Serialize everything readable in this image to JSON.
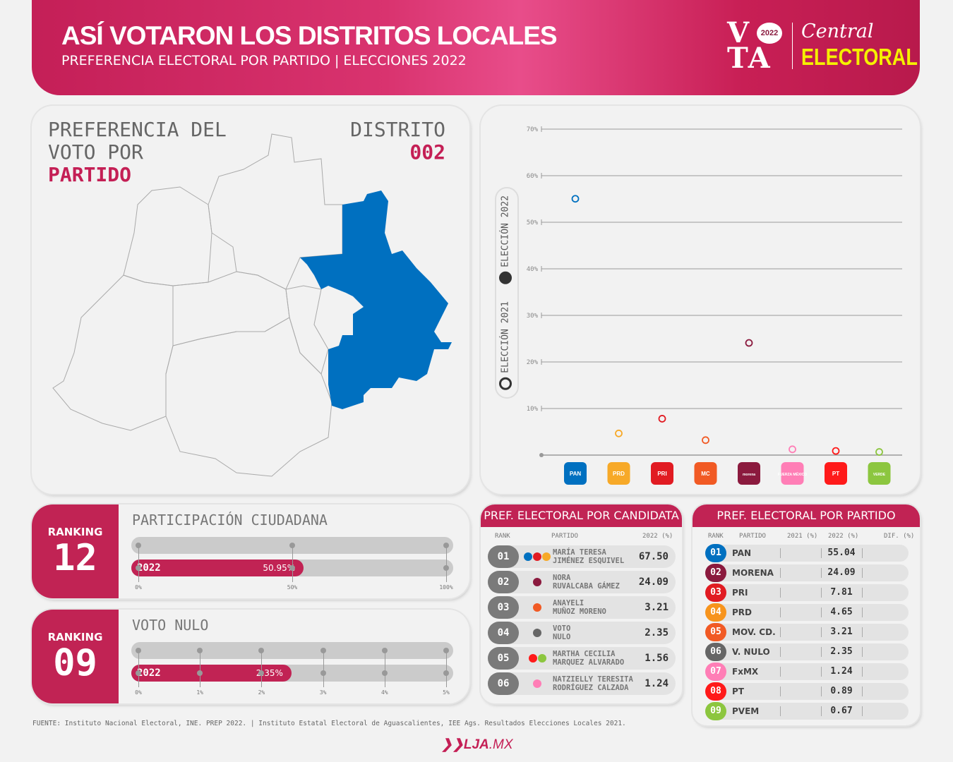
{
  "header": {
    "title": "ASÍ VOTARON LOS DISTRITOS LOCALES",
    "subtitle": "PREFERENCIA ELECTORAL POR PARTIDO | ELECCIONES 2022",
    "logo_vota": "VOTA",
    "logo_year": "2022",
    "logo_central": "Central",
    "logo_electoral": "ELECTORAL"
  },
  "map": {
    "title_1": "PREFERENCIA DEL",
    "title_2": "VOTO POR",
    "title_3": "PARTIDO",
    "district_label": "DISTRITO",
    "district_number": "002",
    "highlight_color": "#0070c0"
  },
  "chart_data": {
    "type": "scatter",
    "title": "",
    "ylim": [
      0,
      70
    ],
    "yticks": [
      10,
      20,
      30,
      40,
      50,
      60,
      70
    ],
    "ytick_labels": [
      "10%",
      "20%",
      "30%",
      "40%",
      "50%",
      "60%",
      "70%"
    ],
    "categories": [
      "PAN",
      "PRD",
      "PRI",
      "MC",
      "MORENA",
      "FxMX",
      "PT",
      "PVEM"
    ],
    "category_logo_text": [
      "PAN",
      "PRD",
      "PRI",
      "MC",
      "morena",
      "FUERZA MÉXICO",
      "PT",
      "VERDE"
    ],
    "category_colors": [
      "#0070c0",
      "#f7a928",
      "#e11b22",
      "#f15a24",
      "#8b1a3e",
      "#ff7eb6",
      "#ff1a1a",
      "#8cc63f"
    ],
    "series": [
      {
        "name": "ELECCIÓN 2022",
        "values": [
          null,
          null,
          null,
          null,
          null,
          null,
          null,
          null
        ]
      },
      {
        "name": "ELECCIÓN 2021",
        "values": [
          55.04,
          4.65,
          7.81,
          3.21,
          24.09,
          1.24,
          0.89,
          0.67
        ]
      }
    ],
    "legend": [
      "ELECCIÓN 2022",
      "ELECCIÓN 2021"
    ],
    "legend_placement": "left",
    "grid": true
  },
  "participacion": {
    "ranking_label": "RANKING",
    "ranking": "12",
    "title": "PARTICIPACIÓN CIUDADANA",
    "year": "2022",
    "value_label": "50.95%",
    "value": 50.95,
    "max": 100,
    "ticks": [
      "0%",
      "50%",
      "100%"
    ]
  },
  "nulo": {
    "ranking_label": "RANKING",
    "ranking": "09",
    "title": "VOTO NULO",
    "year": "2022",
    "value_label": "2.35%",
    "value": 2.35,
    "max": 5,
    "ticks": [
      "0%",
      "1%",
      "2%",
      "3%",
      "4%",
      "5%"
    ]
  },
  "candidatas": {
    "title": "PREF. ELECTORAL POR CANDIDATA",
    "headers": [
      "RANK",
      "PARTIDO",
      "2022 (%)"
    ],
    "rows": [
      {
        "rank": "01",
        "name_1": "MARÍA TERESA",
        "name_2": "JIMÉNEZ ESQUIVEL",
        "value": "67.50",
        "colors": [
          "#0070c0",
          "#e11b22",
          "#f7a928"
        ]
      },
      {
        "rank": "02",
        "name_1": "NORA",
        "name_2": "RUVALCABA GÁMEZ",
        "value": "24.09",
        "colors": [
          "#8b1a3e"
        ]
      },
      {
        "rank": "03",
        "name_1": "ANAYELI",
        "name_2": "MUÑOZ MORENO",
        "value": "3.21",
        "colors": [
          "#f15a24"
        ]
      },
      {
        "rank": "04",
        "name_1": "VOTO",
        "name_2": "NULO",
        "value": "2.35",
        "colors": [
          "#666666"
        ]
      },
      {
        "rank": "05",
        "name_1": "MARTHA CECILIA",
        "name_2": "MARQUEZ ALVARADO",
        "value": "1.56",
        "colors": [
          "#ff1a1a",
          "#8cc63f"
        ]
      },
      {
        "rank": "06",
        "name_1": "NATZIELLY TERESITA",
        "name_2": "RODRÍGUEZ CALZADA",
        "value": "1.24",
        "colors": [
          "#ff7eb6"
        ]
      }
    ]
  },
  "partidos": {
    "title": "PREF. ELECTORAL POR PARTIDO",
    "headers": [
      "RANK",
      "PARTIDO",
      "2021 (%)",
      "2022 (%)",
      "DIF. (%)"
    ],
    "rows": [
      {
        "rank": "01",
        "name": "PAN",
        "v2022": "55.04",
        "color": "#0070c0"
      },
      {
        "rank": "02",
        "name": "MORENA",
        "v2022": "24.09",
        "color": "#8b1a3e"
      },
      {
        "rank": "03",
        "name": "PRI",
        "v2022": "7.81",
        "color": "#e11b22"
      },
      {
        "rank": "04",
        "name": "PRD",
        "v2022": "4.65",
        "color": "#f7941d"
      },
      {
        "rank": "05",
        "name": "MOV. CD.",
        "v2022": "3.21",
        "color": "#f15a24"
      },
      {
        "rank": "06",
        "name": "V. NULO",
        "v2022": "2.35",
        "color": "#666666"
      },
      {
        "rank": "07",
        "name": "FxMX",
        "v2022": "1.24",
        "color": "#ff7eb6"
      },
      {
        "rank": "08",
        "name": "PT",
        "v2022": "0.89",
        "color": "#ff1a1a"
      },
      {
        "rank": "09",
        "name": "PVEM",
        "v2022": "0.67",
        "color": "#8cc63f"
      }
    ]
  },
  "footer": {
    "source": "FUENTE: Instituto Nacional Electoral, INE. PREP 2022. | Instituto Estatal Electoral de Aguascalientes, IEE Ags. Resultados Elecciones Locales 2021.",
    "brand": "LJA",
    "brand_suffix": ".MX"
  }
}
